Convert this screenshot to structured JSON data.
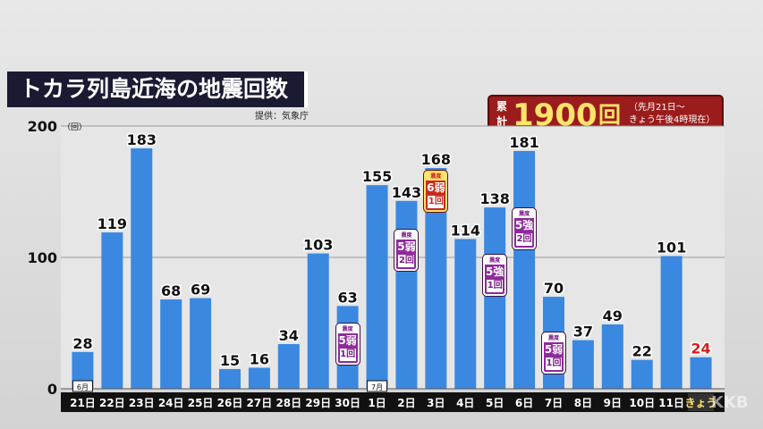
{
  "title": "トカラ列島近海の地震回数",
  "source": "提供：気象庁",
  "total": {
    "label": "累計",
    "value": "1900",
    "unit": "回",
    "note_line1": "（先月21日～",
    "note_line2": "きょう午後4時現在）"
  },
  "watermark": "KKB",
  "colors": {
    "bar": "#3b88e0",
    "today_label": "#d81c1c",
    "accent_yellow": "#ffe36a"
  },
  "chart_data": {
    "type": "bar",
    "title": "トカラ列島近海の地震回数",
    "ylabel": "（回）",
    "ylim": [
      0,
      200
    ],
    "yticks": [
      "200",
      "100",
      "0"
    ],
    "grid": true,
    "categories": [
      "21日",
      "22日",
      "23日",
      "24日",
      "25日",
      "26日",
      "27日",
      "28日",
      "29日",
      "30日",
      "1日",
      "2日",
      "3日",
      "4日",
      "5日",
      "6日",
      "7日",
      "8日",
      "9日",
      "10日",
      "11日",
      "きょう"
    ],
    "values": [
      28,
      119,
      183,
      68,
      69,
      15,
      16,
      34,
      103,
      63,
      155,
      143,
      168,
      114,
      138,
      181,
      70,
      37,
      49,
      22,
      101,
      24
    ],
    "month_markers": [
      {
        "index": 0,
        "label": "6月"
      },
      {
        "index": 10,
        "label": "7月"
      }
    ],
    "annotations": [
      {
        "index": 9,
        "top": "震度",
        "intensity": "5弱",
        "count": "1回",
        "style": "purple"
      },
      {
        "index": 11,
        "top": "震度",
        "intensity": "5弱",
        "count": "2回",
        "style": "purple"
      },
      {
        "index": 12,
        "top": "震度",
        "intensity": "6弱",
        "count": "1回",
        "style": "red"
      },
      {
        "index": 14,
        "top": "震度",
        "intensity": "5強",
        "count": "1回",
        "style": "purple"
      },
      {
        "index": 15,
        "top": "震度",
        "intensity": "5強",
        "count": "2回",
        "style": "purple"
      },
      {
        "index": 16,
        "top": "震度",
        "intensity": "5弱",
        "count": "1回",
        "style": "purple"
      }
    ]
  }
}
